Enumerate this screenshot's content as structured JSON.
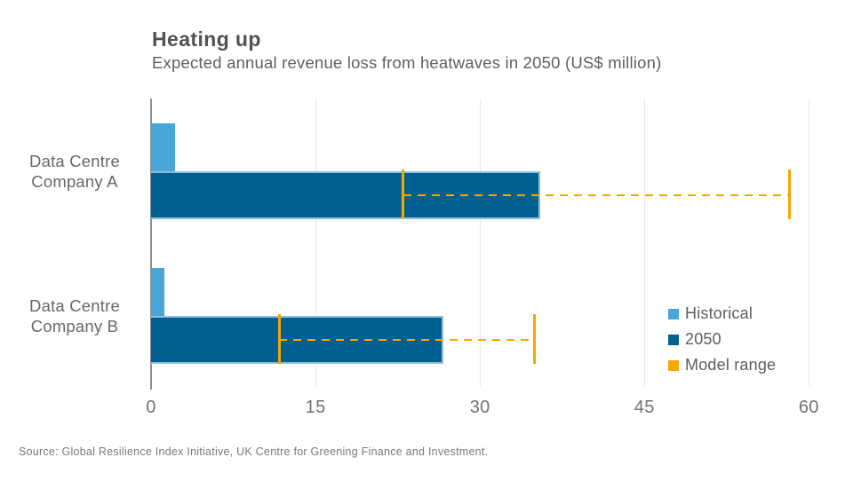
{
  "header": {
    "title": "Heating up",
    "subtitle": "Expected annual revenue loss from heatwaves in 2050 (US$ million)"
  },
  "footer": {
    "source": "Source: Global Resilience Index Initiative, UK Centre for Greening Finance and Investment."
  },
  "colors": {
    "historical": "#4aa6d8",
    "y2050": "#006092",
    "y2050_outline": "#8fbeda",
    "model_range": "#f7a600",
    "gridline": "#e7e7e7",
    "axis": "#8e9093",
    "title_text": "#515254",
    "label_text": "#66686a"
  },
  "legend": [
    {
      "label": "Historical",
      "color": "#4aa6d8"
    },
    {
      "label": "2050",
      "color": "#006092"
    },
    {
      "label": "Model range",
      "color": "#f7a600"
    }
  ],
  "chart_data": {
    "type": "bar",
    "orientation": "horizontal",
    "title": "Heating up",
    "subtitle": "Expected annual revenue loss from heatwaves in 2050 (US$ million)",
    "unit": "US$ million",
    "categories": [
      [
        "Data Centre",
        "Company A"
      ],
      [
        "Data Centre",
        "Company B"
      ]
    ],
    "series": [
      {
        "name": "Historical",
        "values": [
          2.2,
          1.2
        ]
      },
      {
        "name": "2050",
        "values": [
          35.5,
          26.7
        ]
      }
    ],
    "model_range": {
      "name": "Model range",
      "values": [
        [
          23,
          58.2
        ],
        [
          11.7,
          35
        ]
      ]
    },
    "x_ticks": [
      0,
      15,
      30,
      45,
      60
    ],
    "xlim": [
      0,
      62
    ],
    "grid": "vertical-gridlines",
    "legend_position": "right-bottom"
  }
}
